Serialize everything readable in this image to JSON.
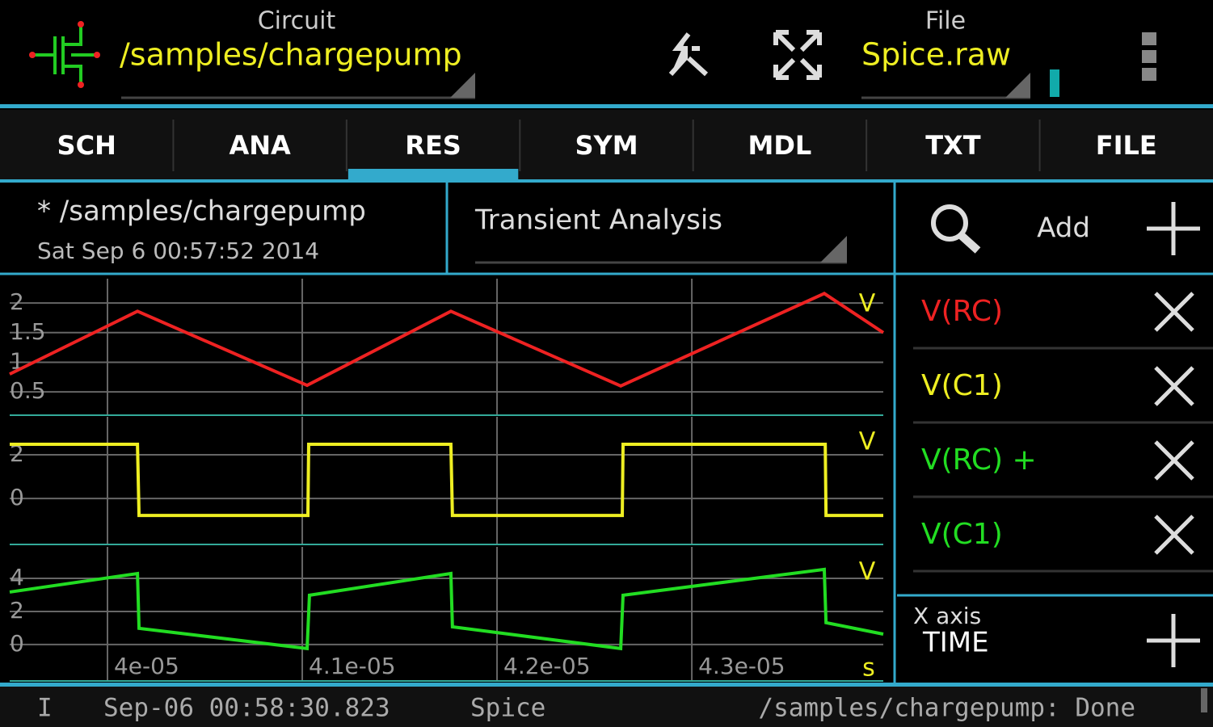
{
  "header": {
    "circuit_label": "Circuit",
    "circuit": "/samples/chargepump",
    "file_label": "File",
    "file": "Spice.raw"
  },
  "tabs": [
    "SCH",
    "ANA",
    "RES",
    "SYM",
    "MDL",
    "TXT",
    "FILE"
  ],
  "selected_tab": "RES",
  "info": {
    "path": "* /samples/chargepump",
    "date": "Sat Sep  6 00:57:52  2014",
    "analysis": "Transient Analysis"
  },
  "traces": {
    "add": "Add",
    "items": [
      {
        "label": "V(RC)",
        "color": "#ee2222"
      },
      {
        "label": "V(C1)",
        "color": "#eeee22"
      },
      {
        "label": "V(RC) +",
        "color": "#22dd22"
      },
      {
        "label": "V(C1)",
        "color": "#22dd22"
      }
    ],
    "x_axis_label": "X axis",
    "x_axis": "TIME"
  },
  "status": {
    "level": "I",
    "time": "Sep-06 00:58:30.823",
    "source": "Spice",
    "message": "/samples/chargepump: Done"
  },
  "chart_data": [
    {
      "type": "line",
      "y_unit": "V",
      "xlim": [
        3.9498e-05,
        4.3983e-05
      ],
      "xticks": [
        4e-05,
        4.1e-05,
        4.2e-05,
        4.3e-05
      ],
      "ylim": [
        0.12,
        2.41
      ],
      "yticks": [
        2,
        1.5,
        1,
        0.5
      ],
      "series": [
        {
          "name": "V(RC)",
          "color": "#ee2222",
          "x": [
            3.9498e-05,
            4.0154e-05,
            4.1025e-05,
            4.1763e-05,
            4.2635e-05,
            4.368e-05,
            4.3983e-05
          ],
          "values": [
            0.8,
            1.86,
            0.61,
            1.86,
            0.6,
            2.16,
            1.5
          ]
        }
      ]
    },
    {
      "type": "line",
      "y_unit": "V",
      "xlim": [
        3.9498e-05,
        4.3983e-05
      ],
      "xticks": [
        4e-05,
        4.1e-05,
        4.2e-05,
        4.3e-05
      ],
      "ylim": [
        -2.07,
        3.74
      ],
      "yticks": [
        2,
        0
      ],
      "series": [
        {
          "name": "V(C1)",
          "color": "#eeee22",
          "x": [
            3.9498e-05,
            4.0154e-05,
            4.0162e-05,
            4.1029e-05,
            4.1033e-05,
            4.1763e-05,
            4.1771e-05,
            4.2643e-05,
            4.2647e-05,
            4.3685e-05,
            4.3689e-05,
            4.3983e-05
          ],
          "values": [
            2.48,
            2.48,
            -0.78,
            -0.78,
            2.48,
            2.48,
            -0.78,
            -0.78,
            2.48,
            2.48,
            -0.78,
            -0.78
          ]
        }
      ]
    },
    {
      "type": "line",
      "y_unit": "V",
      "x_unit": "s",
      "xlim": [
        3.9498e-05,
        4.3983e-05
      ],
      "xticks": [
        {
          "value": 4e-05,
          "label": "4e-05"
        },
        {
          "value": 4.1e-05,
          "label": "4.1e-05"
        },
        {
          "value": 4.2e-05,
          "label": "4.2e-05"
        },
        {
          "value": 4.3e-05,
          "label": "4.3e-05"
        }
      ],
      "ylim": [
        -2.15,
        5.9
      ],
      "yticks": [
        4,
        2,
        0
      ],
      "series": [
        {
          "name": "V(RC) + V(C1)",
          "color": "#22dd22",
          "x": [
            3.9498e-05,
            4.0154e-05,
            4.0162e-05,
            4.1025e-05,
            4.1037e-05,
            4.1763e-05,
            4.1771e-05,
            4.2635e-05,
            4.2647e-05,
            4.368e-05,
            4.3689e-05,
            4.3983e-05
          ],
          "values": [
            3.17,
            4.29,
            0.98,
            -0.24,
            2.98,
            4.29,
            1.07,
            -0.24,
            2.98,
            4.54,
            1.32,
            0.63
          ]
        }
      ]
    }
  ]
}
